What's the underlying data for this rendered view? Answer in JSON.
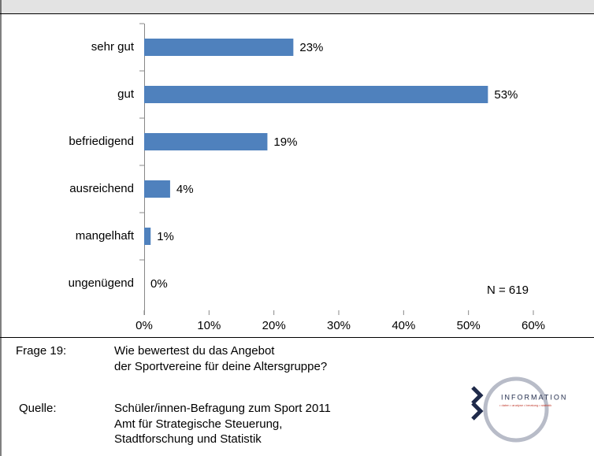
{
  "chart_data": {
    "type": "hbar",
    "categories": [
      "sehr gut",
      "gut",
      "befriedigend",
      "ausreichend",
      "mangelhaft",
      "ungenügend"
    ],
    "values": [
      23,
      53,
      19,
      4,
      1,
      0
    ],
    "value_labels": [
      "23%",
      "53%",
      "19%",
      "4%",
      "1%",
      "0%"
    ],
    "color": "#4f81bd",
    "xlim": [
      0,
      60
    ],
    "xticks": [
      {
        "value": 0,
        "label": "0%"
      },
      {
        "value": 10,
        "label": "10%"
      },
      {
        "value": 20,
        "label": "20%"
      },
      {
        "value": 30,
        "label": "30%"
      },
      {
        "value": 40,
        "label": "40%"
      },
      {
        "value": 50,
        "label": "50%"
      },
      {
        "value": 60,
        "label": "60%"
      }
    ],
    "annotation": "N = 619"
  },
  "footer": {
    "question_label": "Frage 19:",
    "question": [
      "Wie bewertest du das Angebot",
      "der Sportvereine für deine Altersgruppe?"
    ],
    "source_label": "Quelle:",
    "source": [
      "Schüler/innen-Befragung zum Sport 2011",
      "Amt für Strategische Steuerung,",
      "Stadtforschung und Statistik"
    ],
    "logo": "INFORMATION",
    "logo_tagline": "• daten • analyse • beratung • statistik"
  }
}
